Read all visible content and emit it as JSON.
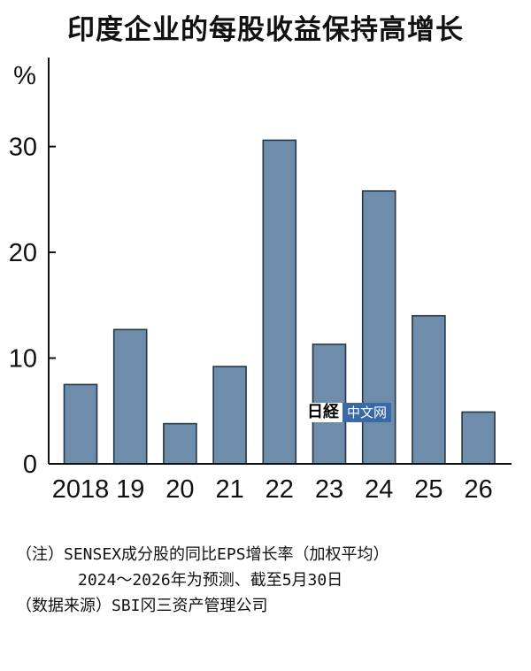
{
  "title": "印度企业的每股收益保持高增长",
  "chart_data": {
    "type": "bar",
    "ylabel": "%",
    "categories": [
      "2018",
      "19",
      "20",
      "21",
      "22",
      "23",
      "24",
      "25",
      "26"
    ],
    "values": [
      7.5,
      12.7,
      3.8,
      9.2,
      30.6,
      11.3,
      25.8,
      14.0,
      4.9
    ],
    "ylim": [
      0,
      38
    ],
    "yticks": [
      0,
      10,
      20,
      30
    ],
    "grid": false,
    "colors": {
      "bar_fill": "#6d8daa",
      "bar_stroke": "#243648",
      "axis": "#111111"
    }
  },
  "watermark": {
    "logo": "日経",
    "text": "中文网"
  },
  "notes": {
    "line1": "（注）SENSEX成分股的同比EPS增长率（加权平均）",
    "line2": "2024～2026年为预测、截至5月30日",
    "line3": "（数据来源）SBI冈三资产管理公司"
  }
}
